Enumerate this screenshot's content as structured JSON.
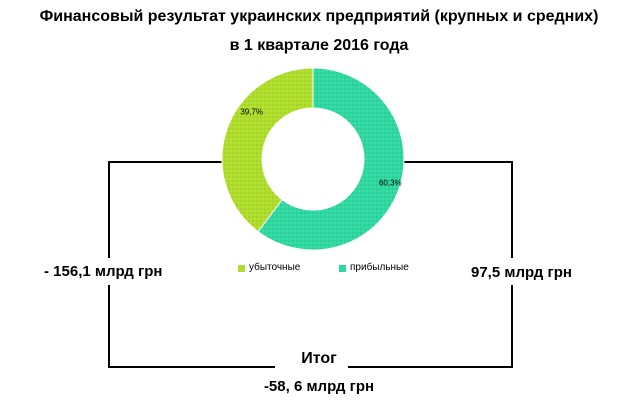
{
  "title": {
    "line1": "Финансовый результат украинских предприятий (крупных и средних)",
    "line2": "в 1 квартале 2016 года"
  },
  "chart_data": {
    "type": "pie",
    "categories": [
      "убыточные",
      "прибыльные"
    ],
    "values": [
      39.7,
      60.3
    ],
    "data_labels": [
      "39,7%",
      "60,3%"
    ],
    "colors": [
      "#aedd2c",
      "#2fd8a0"
    ],
    "legend_position": "bottom"
  },
  "amounts": {
    "loss": "-  156,1 млрд грн",
    "profit": "97,5 млрд грн"
  },
  "total": {
    "label": "Итог",
    "value": "-58, 6 млрд грн"
  }
}
